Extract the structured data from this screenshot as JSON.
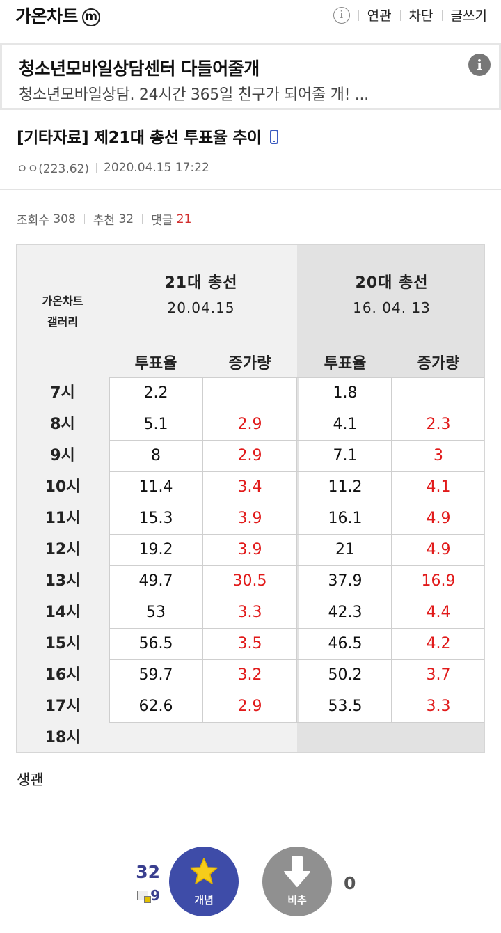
{
  "header": {
    "gallery_title": "가온차트",
    "badge": "m",
    "nav": [
      "연관",
      "차단",
      "글쓰기"
    ]
  },
  "ad": {
    "title": "청소년모바일상담센터 다들어줄개",
    "desc": "청소년모바일상담. 24시간 365일 친구가 되어줄 개! ..."
  },
  "post": {
    "title": "[기타자료] 제21대 총선 투표율 추이",
    "author": "ㅇㅇ(223.62)",
    "date": "2020.04.15 17:22",
    "views_label": "조회수",
    "views": "308",
    "rec_label": "추천",
    "rec": "32",
    "comments_label": "댓글",
    "comments": "21"
  },
  "table": {
    "corner": [
      "가온차트",
      "갤러리"
    ],
    "groups": [
      {
        "name": "21대 총선",
        "date": "20.04.15"
      },
      {
        "name": "20대 총선",
        "date": "16. 04. 13"
      }
    ],
    "subheaders": [
      "투표율",
      "증가량",
      "투표율",
      "증가량"
    ],
    "rows": [
      {
        "hour": "7시",
        "v21": "2.2",
        "i21": "",
        "v20": "1.8",
        "i20": ""
      },
      {
        "hour": "8시",
        "v21": "5.1",
        "i21": "2.9",
        "v20": "4.1",
        "i20": "2.3"
      },
      {
        "hour": "9시",
        "v21": "8",
        "i21": "2.9",
        "v20": "7.1",
        "i20": "3"
      },
      {
        "hour": "10시",
        "v21": "11.4",
        "i21": "3.4",
        "v20": "11.2",
        "i20": "4.1"
      },
      {
        "hour": "11시",
        "v21": "15.3",
        "i21": "3.9",
        "v20": "16.1",
        "i20": "4.9"
      },
      {
        "hour": "12시",
        "v21": "19.2",
        "i21": "3.9",
        "v20": "21",
        "i20": "4.9"
      },
      {
        "hour": "13시",
        "v21": "49.7",
        "i21": "30.5",
        "v20": "37.9",
        "i20": "16.9"
      },
      {
        "hour": "14시",
        "v21": "53",
        "i21": "3.3",
        "v20": "42.3",
        "i20": "4.4"
      },
      {
        "hour": "15시",
        "v21": "56.5",
        "i21": "3.5",
        "v20": "46.5",
        "i20": "4.2"
      },
      {
        "hour": "16시",
        "v21": "59.7",
        "i21": "3.2",
        "v20": "50.2",
        "i20": "3.7"
      },
      {
        "hour": "17시",
        "v21": "62.6",
        "i21": "2.9",
        "v20": "53.5",
        "i20": "3.3"
      }
    ],
    "last_hour": "18시"
  },
  "body": {
    "text": "생괜"
  },
  "recommend": {
    "up_count": "32",
    "fixed_count": "9",
    "up_label": "개념",
    "down_label": "비추",
    "down_count": "0"
  },
  "colors": {
    "accent": "#3e4ca8",
    "increase_red": "#e11a1a",
    "comment_red": "#d12e2e"
  }
}
